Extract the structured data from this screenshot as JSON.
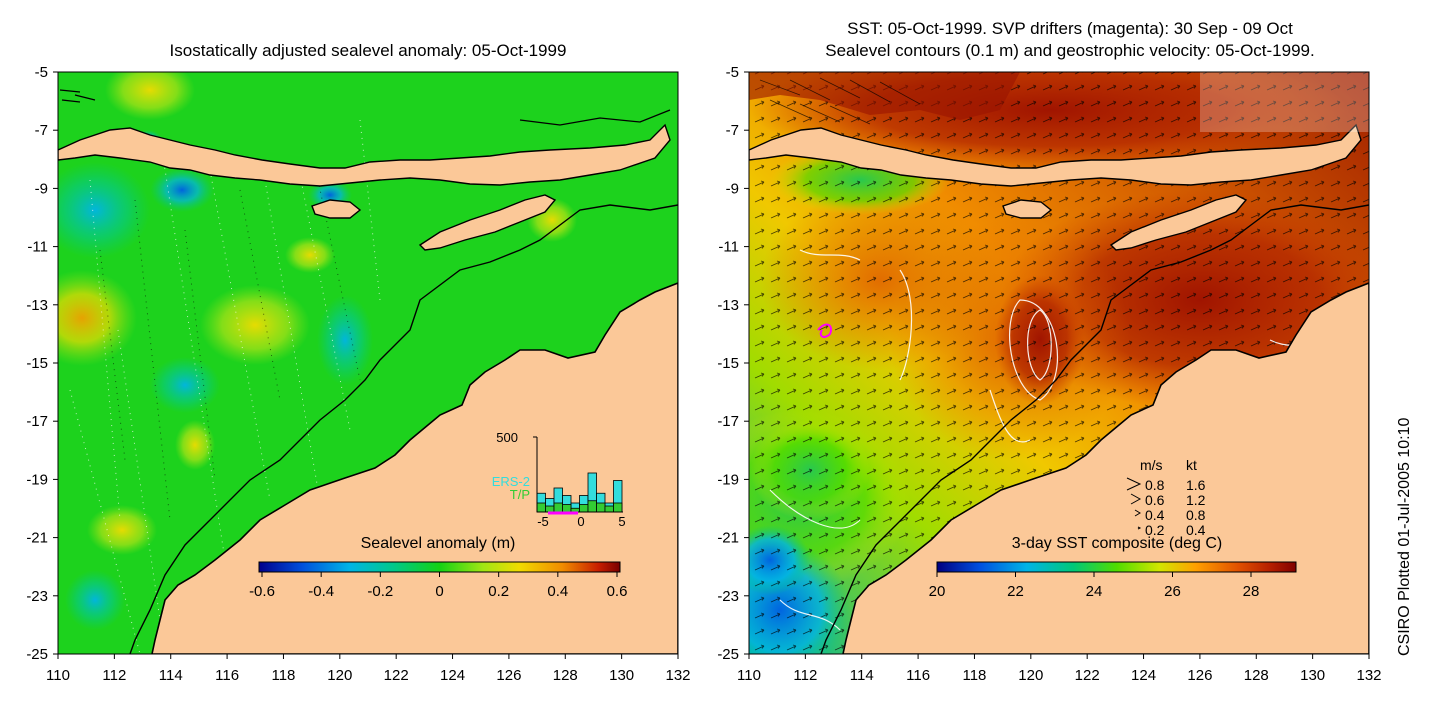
{
  "left_panel": {
    "title": "Isostatically adjusted sealevel anomaly: 05-Oct-1999",
    "y_ticks": [
      "-5",
      "-7",
      "-9",
      "-11",
      "-13",
      "-15",
      "-17",
      "-19",
      "-21",
      "-23",
      "-25"
    ],
    "x_ticks": [
      "110",
      "112",
      "114",
      "116",
      "118",
      "120",
      "122",
      "124",
      "126",
      "128",
      "130",
      "132"
    ],
    "colorbar": {
      "label": "Sealevel anomaly (m)",
      "ticks": [
        "-0.6",
        "-0.4",
        "-0.2",
        "0",
        "0.2",
        "0.4",
        "0.6"
      ]
    },
    "inset": {
      "y_max_label": "500",
      "x_ticks": [
        "-5",
        "0",
        "5"
      ],
      "legend": [
        {
          "label": "ERS-2",
          "color": "#33dddd"
        },
        {
          "label": "T/P",
          "color": "#33cc33"
        }
      ],
      "ers2_bars": [
        0.25,
        0.18,
        0.32,
        0.22,
        0.12,
        0.22,
        0.52,
        0.25,
        0.12,
        0.42
      ],
      "tp_bars": [
        0.12,
        0.08,
        0.12,
        0.1,
        0.05,
        0.1,
        0.15,
        0.12,
        0.08,
        0.12
      ]
    }
  },
  "right_panel": {
    "title_line1": "SST: 05-Oct-1999. SVP drifters (magenta): 30 Sep - 09 Oct",
    "title_line2": "Sealevel contours (0.1 m) and geostrophic velocity: 05-Oct-1999.",
    "y_ticks": [
      "-5",
      "-7",
      "-9",
      "-11",
      "-13",
      "-15",
      "-17",
      "-19",
      "-21",
      "-23",
      "-25"
    ],
    "x_ticks": [
      "110",
      "112",
      "114",
      "116",
      "118",
      "120",
      "122",
      "124",
      "126",
      "128",
      "130",
      "132"
    ],
    "colorbar": {
      "label": "3-day SST composite (deg C)",
      "ticks": [
        "20",
        "22",
        "24",
        "26",
        "28"
      ]
    },
    "velocity_legend": {
      "header_ms": "m/s",
      "header_kt": "kt",
      "rows": [
        {
          "ms": "0.8",
          "kt": "1.6"
        },
        {
          "ms": "0.6",
          "kt": "1.2"
        },
        {
          "ms": "0.4",
          "kt": "0.8"
        },
        {
          "ms": "0.2",
          "kt": "0.4"
        }
      ]
    }
  },
  "credit": "CSIRO Plotted 01-Jul-2005 10:10",
  "colors": {
    "land": "#fbc898",
    "sla_ramp": [
      "#00008c",
      "#0050dc",
      "#00b4e6",
      "#00c88c",
      "#14d214",
      "#a0e614",
      "#f0dc00",
      "#f08c00",
      "#c81e00",
      "#780000"
    ],
    "sst_ramp": [
      "#000080",
      "#0050e0",
      "#00b4e6",
      "#00c878",
      "#50dc00",
      "#d2e600",
      "#ffa000",
      "#e05000",
      "#b41e00",
      "#800000"
    ],
    "drifter": "#ff00ff"
  }
}
